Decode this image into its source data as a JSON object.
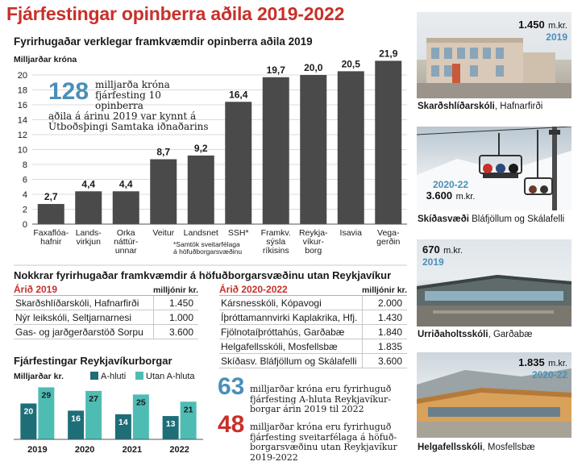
{
  "title": "Fjárfestingar opinberra aðila 2019-2022",
  "main_chart_title": "Fyrirhugaðar verklegar framkvæmdir opinberra aðila 2019",
  "colors": {
    "red": "#c8302a",
    "bar": "#4a4a4a",
    "blue": "#4a8fb8",
    "teal_dark": "#1e6e78",
    "teal_light": "#4fbcb4"
  },
  "chart_data": [
    {
      "type": "bar",
      "title": "Fyrirhugaðar verklegar framkvæmdir opinberra aðila 2019",
      "ylabel": "Milljarðar króna",
      "ylim": [
        0,
        20
      ],
      "yticks": [
        0,
        2,
        4,
        6,
        8,
        10,
        12,
        14,
        16,
        18,
        20
      ],
      "categories": [
        [
          "Faxaflóa-",
          "hafnir"
        ],
        [
          "Lands-",
          "virkjun"
        ],
        [
          "Orka",
          "náttúr-",
          "unnar"
        ],
        [
          "Veitur"
        ],
        [
          "Landsnet"
        ],
        [
          "SSH*"
        ],
        [
          "Framkv.",
          "sýsla",
          "ríkisins"
        ],
        [
          "Reykja-",
          "víkur-",
          "borg"
        ],
        [
          "Isavia"
        ],
        [
          "Vega-",
          "gerðin"
        ]
      ],
      "values": [
        2.7,
        4.4,
        4.4,
        8.7,
        9.2,
        16.4,
        19.7,
        20.0,
        20.5,
        21.9
      ],
      "value_labels": [
        "2,7",
        "4,4",
        "4,4",
        "8,7",
        "9,2",
        "16,4",
        "19,7",
        "20,0",
        "20,5",
        "21,9"
      ],
      "footnote": [
        "*Samtök sveitarfélaga",
        "á höfuðborgarsvæðinu"
      ]
    },
    {
      "type": "bar",
      "title": "Fjárfestingar Reykjavíkurborgar",
      "ylabel": "Milljarðar kr.",
      "categories": [
        "2019",
        "2020",
        "2021",
        "2022"
      ],
      "series": [
        {
          "name": "A-hluti",
          "values": [
            20,
            16,
            14,
            13
          ]
        },
        {
          "name": "Utan A-hluta",
          "values": [
            29,
            27,
            25,
            21
          ]
        }
      ]
    }
  ],
  "callout_main": {
    "big": "128",
    "line1": "milljarða króna",
    "line2": "fjárfesting 10 opinberra",
    "line3": "aðila á árinu 2019 var kynnt á",
    "line4": "Útboðsþingi Samtaka iðnaðarins"
  },
  "section2_title": "Nokkrar fyrirhugaðar framkvæmdir á höfuðborgarsvæðinu utan Reykjavíkur",
  "table_2019": {
    "heading": "Árið 2019",
    "unit": "milljónir kr.",
    "rows": [
      {
        "name": "Skarðshlíðarskóli, Hafnarfirði",
        "value": "1.450"
      },
      {
        "name": "Nýr leikskóli, Seltjarnarnesi",
        "value": "1.000"
      },
      {
        "name": "Gas- og jarðgerðarstöð Sorpu",
        "value": "3.600"
      }
    ]
  },
  "table_2020": {
    "heading": "Árið 2020-2022",
    "unit": "milljónir kr.",
    "rows": [
      {
        "name": "Kársnesskóli, Kópavogi",
        "value": "2.000"
      },
      {
        "name": "Íþróttamannvirki Kaplakrika, Hfj.",
        "value": "1.430"
      },
      {
        "name": "Fjölnotaíþróttahús, Garðabæ",
        "value": "1.840"
      },
      {
        "name": "Helgafellsskóli, Mosfellsbæ",
        "value": "1.835"
      },
      {
        "name": "Skíðasv. Bláfjöllum og Skálafelli",
        "value": "3.600"
      }
    ]
  },
  "callout_63": {
    "big": "63",
    "line1": "milljarðar króna eru fyrirhuguð",
    "line2": "fjárfesting A-hluta Reykjavíkur-",
    "line3": "borgar árin 2019 til 2022"
  },
  "callout_48": {
    "big": "48",
    "line1": "milljarðar króna eru fyrirhuguð",
    "line2": "fjárfesting sveitarfélaga á höfuð-",
    "line3": "borgarsvæðinu utan Reykjavíkur 2019-2022"
  },
  "photos": [
    {
      "amount": "1.450",
      "unit": "m.kr.",
      "year": "2019",
      "caption_bold": "Skarðshlíðarskóli",
      "caption_rest": ", Hafnarfirði",
      "icon": "school-building-photo"
    },
    {
      "amount": "3.600",
      "unit": "m.kr.",
      "year": "2020-22",
      "caption_bold": "Skíðasvæði",
      "caption_rest": " Bláfjöllum og Skálafelli",
      "icon": "ski-lift-photo"
    },
    {
      "amount": "670",
      "unit": "m.kr.",
      "year": "2019",
      "caption_bold": "Urriðaholtsskóli",
      "caption_rest": ", Garðabæ",
      "icon": "school-building-photo"
    },
    {
      "amount": "1.835",
      "unit": "m.kr.",
      "year": "2020-22",
      "caption_bold": "Helgafellsskóli",
      "caption_rest": ", Mosfellsbæ",
      "icon": "school-building-photo"
    }
  ]
}
